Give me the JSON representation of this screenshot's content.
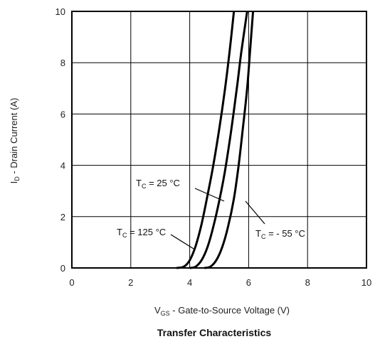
{
  "chart_data": {
    "type": "line",
    "title": "Transfer Characteristics",
    "xlabel": {
      "main": "V",
      "sub": "GS",
      "rest": " - Gate-to-Source Voltage (V)"
    },
    "ylabel": {
      "main": "I",
      "sub": "D",
      "rest": " - Drain Current (A)"
    },
    "xlim": [
      0,
      10
    ],
    "ylim": [
      0,
      10
    ],
    "xticks": [
      0,
      2,
      4,
      6,
      8,
      10
    ],
    "yticks": [
      0,
      2,
      4,
      6,
      8,
      10
    ],
    "grid": true,
    "series": [
      {
        "name": "125 °C",
        "label": {
          "main": "T",
          "sub": "C",
          "rest": " = 125 °C"
        },
        "x": [
          3.55,
          3.8,
          4.0,
          4.2,
          4.4,
          4.6,
          4.8,
          5.0,
          5.2,
          5.35,
          5.5
        ],
        "y": [
          0,
          0.05,
          0.3,
          0.85,
          1.7,
          2.8,
          4.0,
          5.4,
          7.0,
          8.4,
          10
        ]
      },
      {
        "name": "25 °C",
        "label": {
          "main": "T",
          "sub": "C",
          "rest": " = 25 °C"
        },
        "x": [
          4.0,
          4.2,
          4.4,
          4.6,
          4.8,
          5.0,
          5.2,
          5.4,
          5.6,
          5.75,
          5.95
        ],
        "y": [
          0,
          0.05,
          0.3,
          0.8,
          1.6,
          2.6,
          3.8,
          5.3,
          7.0,
          8.4,
          10
        ]
      },
      {
        "name": "- 55 °C",
        "label": {
          "main": "T",
          "sub": "C",
          "rest": " = - 55 °C"
        },
        "x": [
          4.5,
          4.7,
          4.9,
          5.1,
          5.3,
          5.5,
          5.65,
          5.8,
          5.95,
          6.05,
          6.15
        ],
        "y": [
          0,
          0.05,
          0.3,
          0.8,
          1.6,
          2.7,
          3.9,
          5.4,
          7.0,
          8.5,
          10
        ]
      }
    ]
  }
}
